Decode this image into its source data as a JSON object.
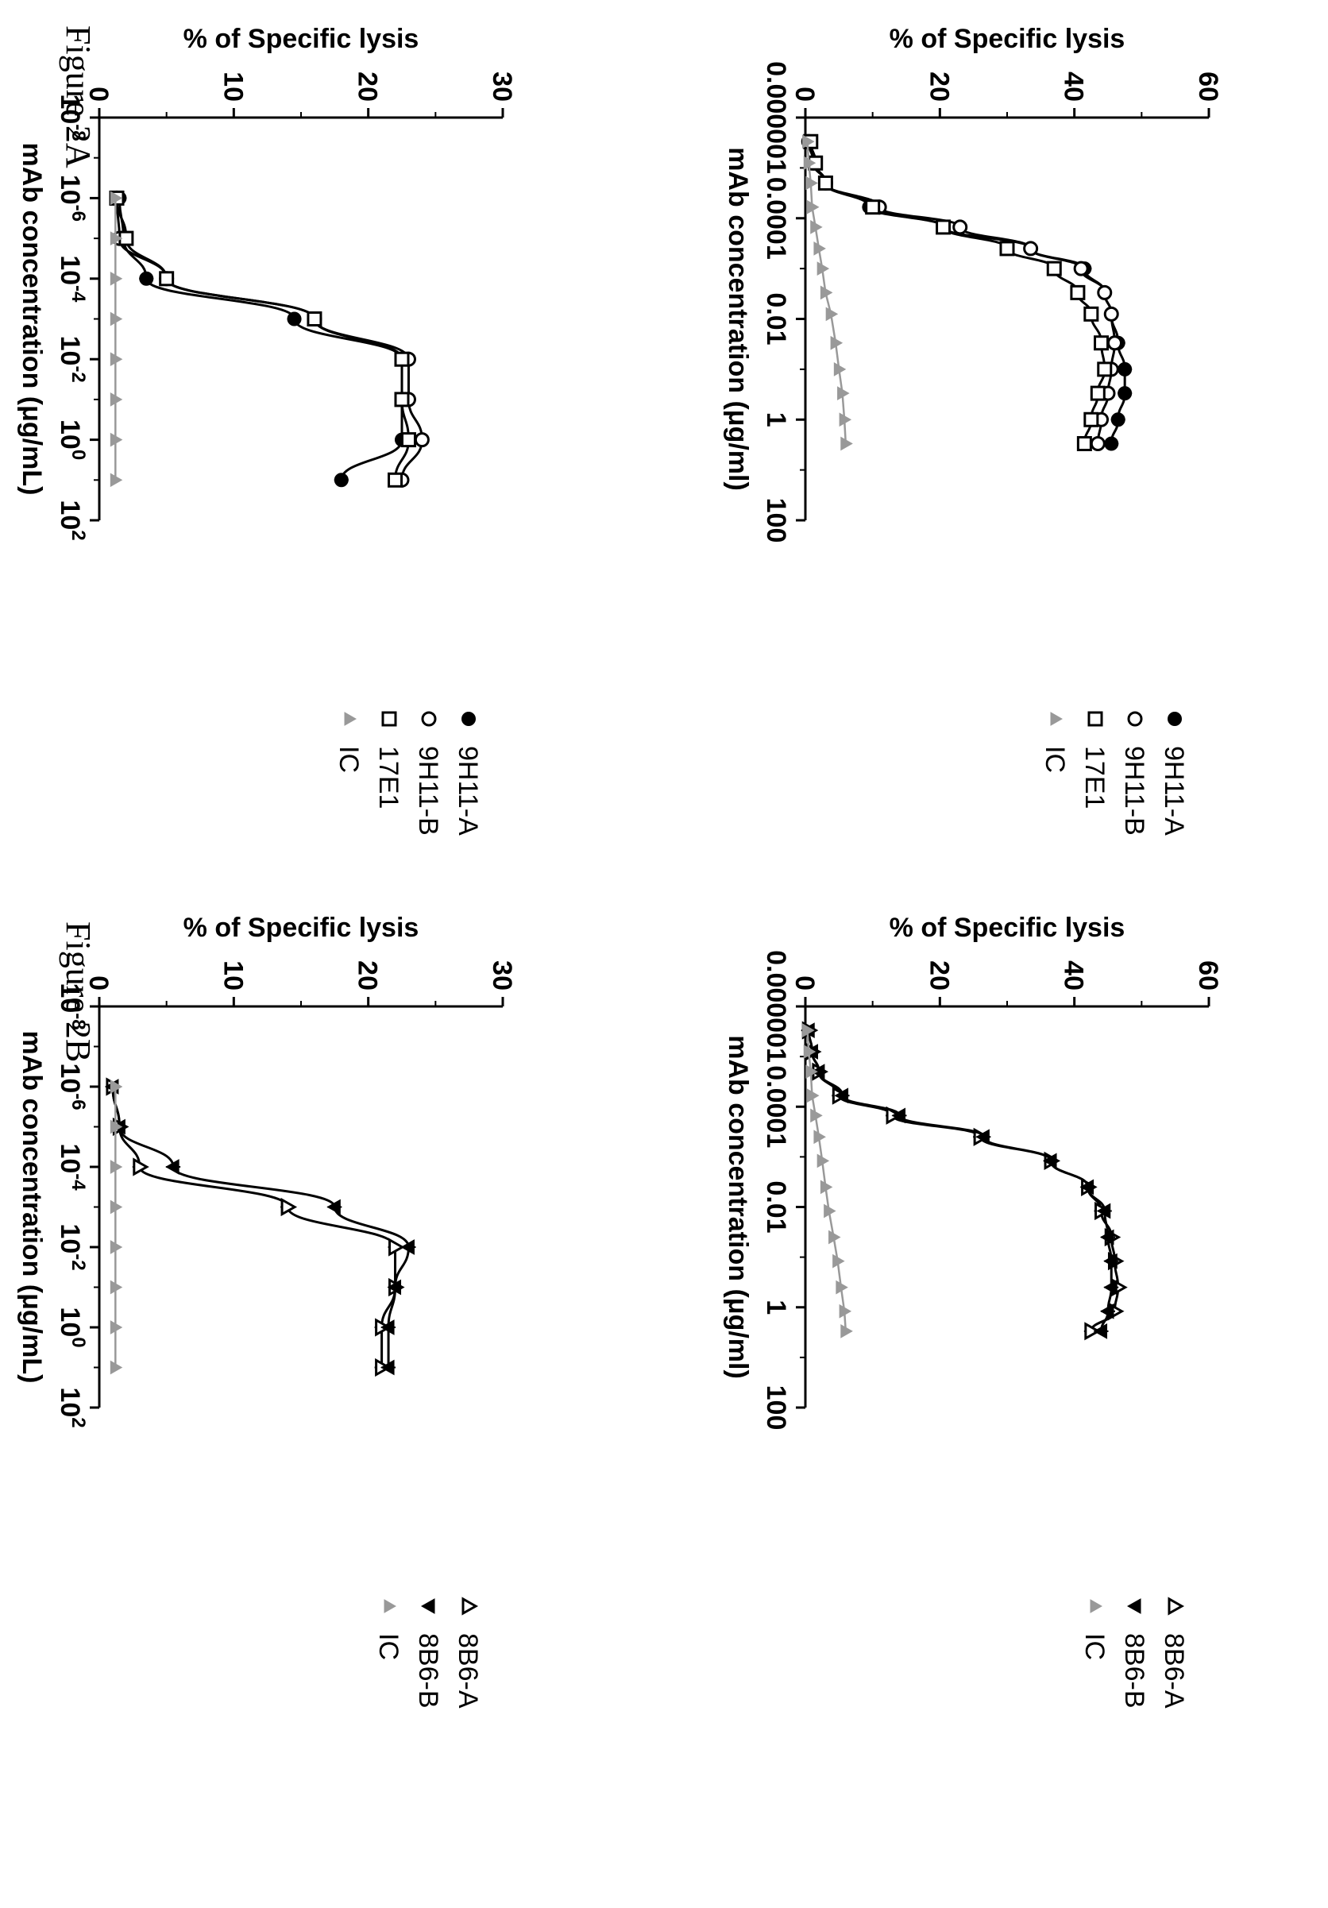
{
  "figure_titles": {
    "fig_2a": "Figure 2A",
    "fig_2b": "Figure 2B"
  },
  "colors": {
    "ink": "#000000",
    "ic_gray": "#999999"
  },
  "chart_data": [
    {
      "id": "2a_right",
      "type": "scatter",
      "title": "",
      "xlabel": "mAb concentration (μg/ml)",
      "ylabel": "% of Specific lysis",
      "xscale": "log",
      "xlim": [
        1e-06,
        100
      ],
      "ylim": [
        0,
        60
      ],
      "xticks": [
        1e-06,
        0.0001,
        0.01,
        1,
        100
      ],
      "xticklabels": [
        "0.000001",
        "0.0001",
        "0.01",
        "1",
        "100"
      ],
      "yticks": [
        0,
        20,
        40,
        60
      ],
      "yticklabels": [
        "0",
        "20",
        "40",
        "60"
      ],
      "legend_position": "right",
      "series": [
        {
          "name": "9H11-A",
          "marker": "filled-circle",
          "color": "#000000",
          "curve": true,
          "x": [
            3e-06,
            8e-06,
            2e-05,
            6e-05,
            0.00015,
            0.0004,
            0.001,
            0.003,
            0.008,
            0.03,
            0.1,
            0.3,
            1,
            3
          ],
          "y": [
            0.8,
            1.5,
            3.0,
            9.5,
            20.5,
            33.5,
            41.5,
            44.5,
            45.5,
            46.5,
            47.5,
            47.5,
            46.5,
            45.5
          ]
        },
        {
          "name": "9H11-B",
          "marker": "open-circle",
          "color": "#000000",
          "curve": true,
          "x": [
            3e-06,
            8e-06,
            2e-05,
            6e-05,
            0.00015,
            0.0004,
            0.001,
            0.003,
            0.008,
            0.03,
            0.1,
            0.3,
            1,
            3
          ],
          "y": [
            0.5,
            1.2,
            3.0,
            11.0,
            23.0,
            33.5,
            41.0,
            44.5,
            45.5,
            46.0,
            45.5,
            45.0,
            44.0,
            43.5
          ]
        },
        {
          "name": "17E1",
          "marker": "open-square",
          "color": "#000000",
          "curve": true,
          "x": [
            3e-06,
            8e-06,
            2e-05,
            6e-05,
            0.00015,
            0.0004,
            0.001,
            0.003,
            0.008,
            0.03,
            0.1,
            0.3,
            1,
            3
          ],
          "y": [
            0.8,
            1.5,
            3.0,
            10.0,
            20.5,
            30.0,
            37.0,
            40.5,
            42.5,
            44.0,
            44.5,
            43.5,
            42.5,
            41.5
          ]
        },
        {
          "name": "IC",
          "marker": "gray-triangle",
          "color": "#999999",
          "curve": false,
          "x": [
            3e-06,
            8e-06,
            2e-05,
            6e-05,
            0.00015,
            0.0004,
            0.001,
            0.003,
            0.008,
            0.03,
            0.1,
            0.3,
            1,
            3
          ],
          "y": [
            0.3,
            0.5,
            0.8,
            1.0,
            1.5,
            2.0,
            2.5,
            3.0,
            3.8,
            4.5,
            5.0,
            5.5,
            5.8,
            6.0
          ]
        }
      ]
    },
    {
      "id": "2a_left",
      "type": "scatter",
      "title": "",
      "xlabel": "mAb concentration (μg/ml)",
      "ylabel": "% of Specific lysis",
      "xscale": "log",
      "xlim": [
        1e-06,
        100
      ],
      "ylim": [
        0,
        60
      ],
      "xticks": [
        1e-06,
        0.0001,
        0.01,
        1,
        100
      ],
      "xticklabels": [
        "0.000001",
        "0.0001",
        "0.01",
        "1",
        "100"
      ],
      "yticks": [
        0,
        20,
        40,
        60
      ],
      "yticklabels": [
        "0",
        "20",
        "40",
        "60"
      ],
      "legend_position": "right",
      "series": [
        {
          "name": "8B6-A",
          "marker": "open-triangle",
          "color": "#000000",
          "curve": true,
          "x": [
            3e-06,
            8e-06,
            2e-05,
            6e-05,
            0.00015,
            0.0004,
            0.0012,
            0.004,
            0.012,
            0.04,
            0.12,
            0.4,
            1.2,
            3
          ],
          "y": [
            0.5,
            1.0,
            2.0,
            5.0,
            13.0,
            26.0,
            36.5,
            42.0,
            44.0,
            45.5,
            46.0,
            46.5,
            46.0,
            42.5
          ]
        },
        {
          "name": "8B6-B",
          "marker": "filled-triangle-down",
          "color": "#000000",
          "curve": true,
          "x": [
            3e-06,
            8e-06,
            2e-05,
            6e-05,
            0.00015,
            0.0004,
            0.0012,
            0.004,
            0.012,
            0.04,
            0.12,
            0.4,
            1.2,
            3
          ],
          "y": [
            0.5,
            1.0,
            2.0,
            5.5,
            14.0,
            26.5,
            36.5,
            42.0,
            44.5,
            45.0,
            45.5,
            45.5,
            45.0,
            44.0
          ]
        },
        {
          "name": "IC",
          "marker": "gray-triangle",
          "color": "#999999",
          "curve": false,
          "x": [
            3e-06,
            8e-06,
            2e-05,
            6e-05,
            0.00015,
            0.0004,
            0.0012,
            0.004,
            0.012,
            0.04,
            0.12,
            0.4,
            1.2,
            3
          ],
          "y": [
            0.3,
            0.5,
            0.8,
            1.0,
            1.5,
            2.0,
            2.5,
            3.0,
            3.5,
            4.2,
            4.8,
            5.3,
            5.8,
            6.0
          ]
        }
      ]
    },
    {
      "id": "2b_right",
      "type": "scatter",
      "title": "",
      "xlabel": "mAb concentration (μg/mL)",
      "ylabel": "% of Specific lysis",
      "xscale": "log",
      "xlim": [
        1e-08,
        100
      ],
      "ylim": [
        0,
        30
      ],
      "xticks": [
        1e-08,
        1e-06,
        0.0001,
        0.01,
        1,
        100
      ],
      "xticklabels": [
        [
          "10",
          "-8"
        ],
        [
          "10",
          "-6"
        ],
        [
          "10",
          "-4"
        ],
        [
          "10",
          "-2"
        ],
        [
          "10",
          "0"
        ],
        [
          "10",
          "2"
        ]
      ],
      "yticks": [
        0,
        10,
        20,
        30
      ],
      "yticklabels": [
        "0",
        "10",
        "20",
        "30"
      ],
      "legend_position": "right",
      "series": [
        {
          "name": "9H11-A",
          "marker": "filled-circle",
          "color": "#000000",
          "curve": true,
          "x": [
            1e-06,
            1e-05,
            0.0001,
            0.001,
            0.01,
            0.1,
            1,
            10
          ],
          "y": [
            1.5,
            1.8,
            3.5,
            14.5,
            22.5,
            22.5,
            22.5,
            18.0
          ]
        },
        {
          "name": "9H11-B",
          "marker": "open-circle",
          "color": "#000000",
          "curve": true,
          "x": [
            1e-06,
            1e-05,
            0.0001,
            0.001,
            0.01,
            0.1,
            1,
            10
          ],
          "y": [
            1.3,
            1.5,
            5.0,
            16.0,
            23.0,
            23.0,
            24.0,
            22.5
          ]
        },
        {
          "name": "17E1",
          "marker": "open-square",
          "color": "#000000",
          "curve": true,
          "x": [
            1e-06,
            1e-05,
            0.0001,
            0.001,
            0.01,
            0.1,
            1,
            10
          ],
          "y": [
            1.3,
            2.0,
            5.0,
            16.0,
            22.5,
            22.5,
            23.0,
            22.0
          ]
        },
        {
          "name": "IC",
          "marker": "gray-triangle",
          "color": "#999999",
          "curve": false,
          "x": [
            1e-06,
            1e-05,
            0.0001,
            0.001,
            0.01,
            0.1,
            1,
            10
          ],
          "y": [
            1.2,
            1.2,
            1.2,
            1.2,
            1.2,
            1.2,
            1.2,
            1.2
          ]
        }
      ]
    },
    {
      "id": "2b_left",
      "type": "scatter",
      "title": "",
      "xlabel": "mAb concentration (μg/mL)",
      "ylabel": "% of Specific lysis",
      "xscale": "log",
      "xlim": [
        1e-08,
        100
      ],
      "ylim": [
        0,
        30
      ],
      "xticks": [
        1e-08,
        1e-06,
        0.0001,
        0.01,
        1,
        100
      ],
      "xticklabels": [
        [
          "10",
          "-8"
        ],
        [
          "10",
          "-6"
        ],
        [
          "10",
          "-4"
        ],
        [
          "10",
          "-2"
        ],
        [
          "10",
          "0"
        ],
        [
          "10",
          "2"
        ]
      ],
      "yticks": [
        0,
        10,
        20,
        30
      ],
      "yticklabels": [
        "0",
        "10",
        "20",
        "30"
      ],
      "legend_position": "right",
      "series": [
        {
          "name": "8B6-A",
          "marker": "open-triangle",
          "color": "#000000",
          "curve": true,
          "x": [
            1e-06,
            1e-05,
            0.0001,
            0.001,
            0.01,
            0.1,
            1,
            10
          ],
          "y": [
            1.0,
            1.5,
            3.0,
            14.0,
            22.0,
            22.0,
            21.0,
            21.0
          ]
        },
        {
          "name": "8B6-B",
          "marker": "filled-triangle-down",
          "color": "#000000",
          "curve": true,
          "x": [
            1e-06,
            1e-05,
            0.0001,
            0.001,
            0.01,
            0.1,
            1,
            10
          ],
          "y": [
            1.0,
            1.5,
            5.5,
            17.5,
            23.0,
            22.0,
            21.5,
            21.5
          ]
        },
        {
          "name": "IC",
          "marker": "gray-triangle",
          "color": "#999999",
          "curve": false,
          "x": [
            1e-06,
            1e-05,
            0.0001,
            0.001,
            0.01,
            0.1,
            1,
            10
          ],
          "y": [
            1.2,
            1.2,
            1.2,
            1.2,
            1.2,
            1.2,
            1.2,
            1.2
          ]
        }
      ]
    }
  ]
}
